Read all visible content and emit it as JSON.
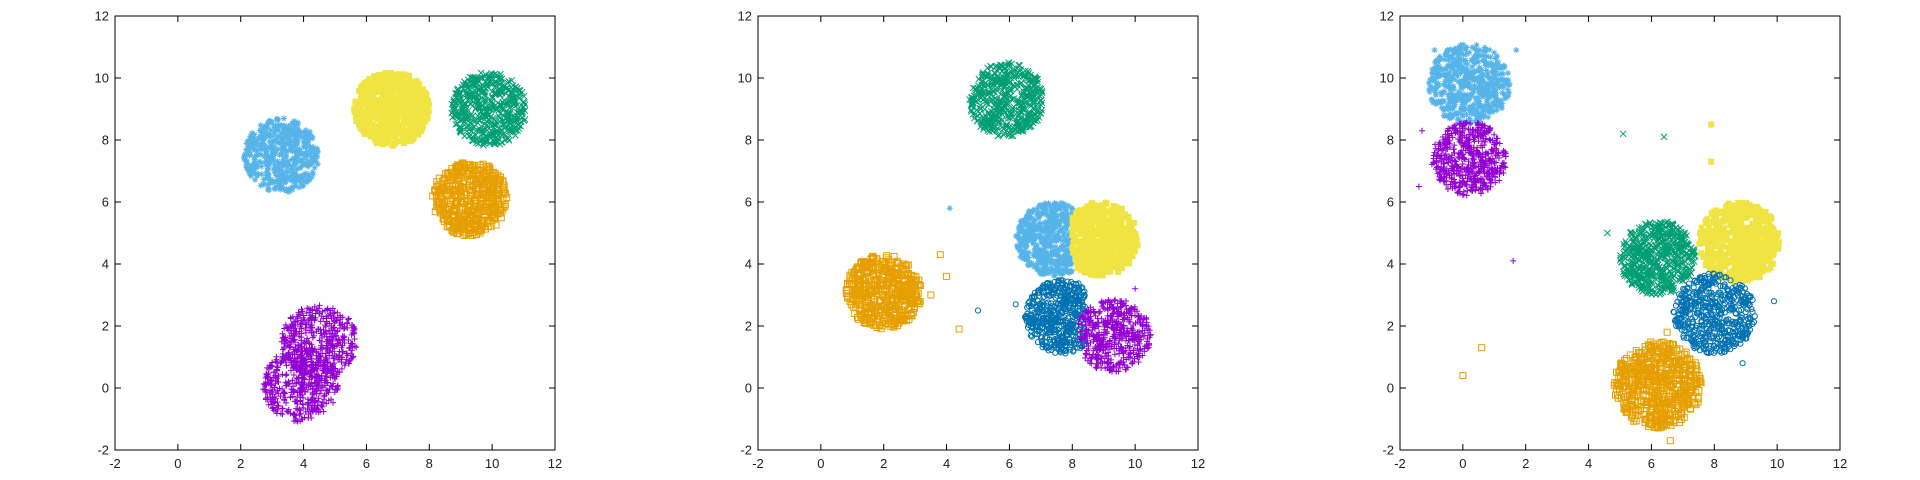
{
  "colors": {
    "light_blue": "#56b4e9",
    "green": "#009e73",
    "yellow": "#f0e442",
    "orange": "#e69f00",
    "purple": "#9400d3",
    "dark_blue": "#0072b2"
  },
  "chart_data": [
    {
      "type": "scatter",
      "xlim": [
        -2,
        12
      ],
      "ylim": [
        -2,
        12
      ],
      "xticks": [
        "-2",
        "0",
        "2",
        "4",
        "6",
        "8",
        "10",
        "12"
      ],
      "yticks": [
        "-2",
        "0",
        "2",
        "4",
        "6",
        "8",
        "10",
        "12"
      ],
      "grid": false,
      "series": [
        {
          "color": "light_blue",
          "marker": "star",
          "center": [
            3.3,
            7.5
          ],
          "radius": 1.2,
          "points": 500
        },
        {
          "color": "yellow",
          "marker": "filled-square",
          "center": [
            6.8,
            9.0
          ],
          "radius": 1.2,
          "points": 600
        },
        {
          "color": "green",
          "marker": "x",
          "center": [
            9.9,
            9.0
          ],
          "radius": 1.2,
          "points": 500
        },
        {
          "color": "orange",
          "marker": "open-square",
          "center": [
            9.3,
            6.1
          ],
          "radius": 1.2,
          "points": 500
        },
        {
          "color": "purple",
          "marker": "plus",
          "center": [
            4.5,
            1.5
          ],
          "radius": 1.2,
          "points": 450
        },
        {
          "color": "purple",
          "marker": "plus",
          "center": [
            3.9,
            0.1
          ],
          "radius": 1.2,
          "points": 450
        }
      ],
      "outliers": []
    },
    {
      "type": "scatter",
      "xlim": [
        -2,
        12
      ],
      "ylim": [
        -2,
        12
      ],
      "xticks": [
        "-2",
        "0",
        "2",
        "4",
        "6",
        "8",
        "10",
        "12"
      ],
      "yticks": [
        "-2",
        "0",
        "2",
        "4",
        "6",
        "8",
        "10",
        "12"
      ],
      "grid": false,
      "series": [
        {
          "color": "green",
          "marker": "x",
          "center": [
            5.9,
            9.3
          ],
          "radius": 1.2,
          "points": 500
        },
        {
          "color": "orange",
          "marker": "open-square",
          "center": [
            2.0,
            3.1
          ],
          "radius": 1.2,
          "points": 500
        },
        {
          "color": "light_blue",
          "marker": "star",
          "center": [
            7.4,
            4.8
          ],
          "radius": 1.2,
          "points": 500,
          "max_x": 8.0
        },
        {
          "color": "yellow",
          "marker": "filled-square",
          "center": [
            8.9,
            4.8
          ],
          "radius": 1.2,
          "points": 500,
          "min_x": 8.0
        },
        {
          "color": "dark_blue",
          "marker": "circle",
          "center": [
            7.7,
            2.3
          ],
          "radius": 1.2,
          "points": 500,
          "max_x": 8.4
        },
        {
          "color": "purple",
          "marker": "plus",
          "center": [
            9.3,
            1.7
          ],
          "radius": 1.2,
          "points": 500,
          "min_x": 8.2
        }
      ],
      "outliers": [
        {
          "color": "light_blue",
          "marker": "star",
          "x": 4.1,
          "y": 5.8
        },
        {
          "color": "orange",
          "marker": "open-square",
          "x": 3.8,
          "y": 4.3
        },
        {
          "color": "orange",
          "marker": "open-square",
          "x": 4.0,
          "y": 3.6
        },
        {
          "color": "orange",
          "marker": "open-square",
          "x": 3.5,
          "y": 3.0
        },
        {
          "color": "orange",
          "marker": "open-square",
          "x": 4.4,
          "y": 1.9
        },
        {
          "color": "dark_blue",
          "marker": "circle",
          "x": 5.0,
          "y": 2.5
        },
        {
          "color": "dark_blue",
          "marker": "circle",
          "x": 6.2,
          "y": 2.7
        },
        {
          "color": "purple",
          "marker": "plus",
          "x": 10.0,
          "y": 3.2
        }
      ]
    },
    {
      "type": "scatter",
      "xlim": [
        -2,
        12
      ],
      "ylim": [
        -2,
        12
      ],
      "xticks": [
        "-2",
        "0",
        "2",
        "4",
        "6",
        "8",
        "10",
        "12"
      ],
      "yticks": [
        "-2",
        "0",
        "2",
        "4",
        "6",
        "8",
        "10",
        "12"
      ],
      "grid": false,
      "series": [
        {
          "color": "light_blue",
          "marker": "star",
          "center": [
            0.2,
            9.8
          ],
          "radius": 1.3,
          "points": 550
        },
        {
          "color": "purple",
          "marker": "plus",
          "center": [
            0.2,
            7.4
          ],
          "radius": 1.2,
          "points": 550
        },
        {
          "color": "green",
          "marker": "x",
          "center": [
            6.2,
            4.2
          ],
          "radius": 1.2,
          "points": 550
        },
        {
          "color": "yellow",
          "marker": "filled-square",
          "center": [
            8.8,
            4.7
          ],
          "radius": 1.3,
          "points": 550
        },
        {
          "color": "dark_blue",
          "marker": "circle",
          "center": [
            8.0,
            2.4
          ],
          "radius": 1.3,
          "points": 500
        },
        {
          "color": "orange",
          "marker": "open-square",
          "center": [
            6.2,
            0.1
          ],
          "radius": 1.4,
          "points": 600
        }
      ],
      "outliers": [
        {
          "color": "light_blue",
          "marker": "star",
          "x": -0.9,
          "y": 10.9
        },
        {
          "color": "light_blue",
          "marker": "star",
          "x": 1.7,
          "y": 10.9
        },
        {
          "color": "purple",
          "marker": "plus",
          "x": -1.3,
          "y": 8.3
        },
        {
          "color": "purple",
          "marker": "plus",
          "x": -1.4,
          "y": 6.5
        },
        {
          "color": "purple",
          "marker": "plus",
          "x": 1.6,
          "y": 4.1
        },
        {
          "color": "green",
          "marker": "x",
          "x": 5.1,
          "y": 8.2
        },
        {
          "color": "green",
          "marker": "x",
          "x": 6.4,
          "y": 8.1
        },
        {
          "color": "green",
          "marker": "x",
          "x": 4.6,
          "y": 5.0
        },
        {
          "color": "yellow",
          "marker": "filled-square",
          "x": 7.9,
          "y": 8.5
        },
        {
          "color": "yellow",
          "marker": "filled-square",
          "x": 7.9,
          "y": 7.3
        },
        {
          "color": "dark_blue",
          "marker": "circle",
          "x": 9.9,
          "y": 2.8
        },
        {
          "color": "dark_blue",
          "marker": "circle",
          "x": 8.9,
          "y": 0.8
        },
        {
          "color": "orange",
          "marker": "open-square",
          "x": 0.6,
          "y": 1.3
        },
        {
          "color": "orange",
          "marker": "open-square",
          "x": 0.0,
          "y": 0.4
        },
        {
          "color": "orange",
          "marker": "open-square",
          "x": 6.5,
          "y": 1.8
        },
        {
          "color": "orange",
          "marker": "open-square",
          "x": 6.6,
          "y": -1.7
        }
      ]
    }
  ]
}
